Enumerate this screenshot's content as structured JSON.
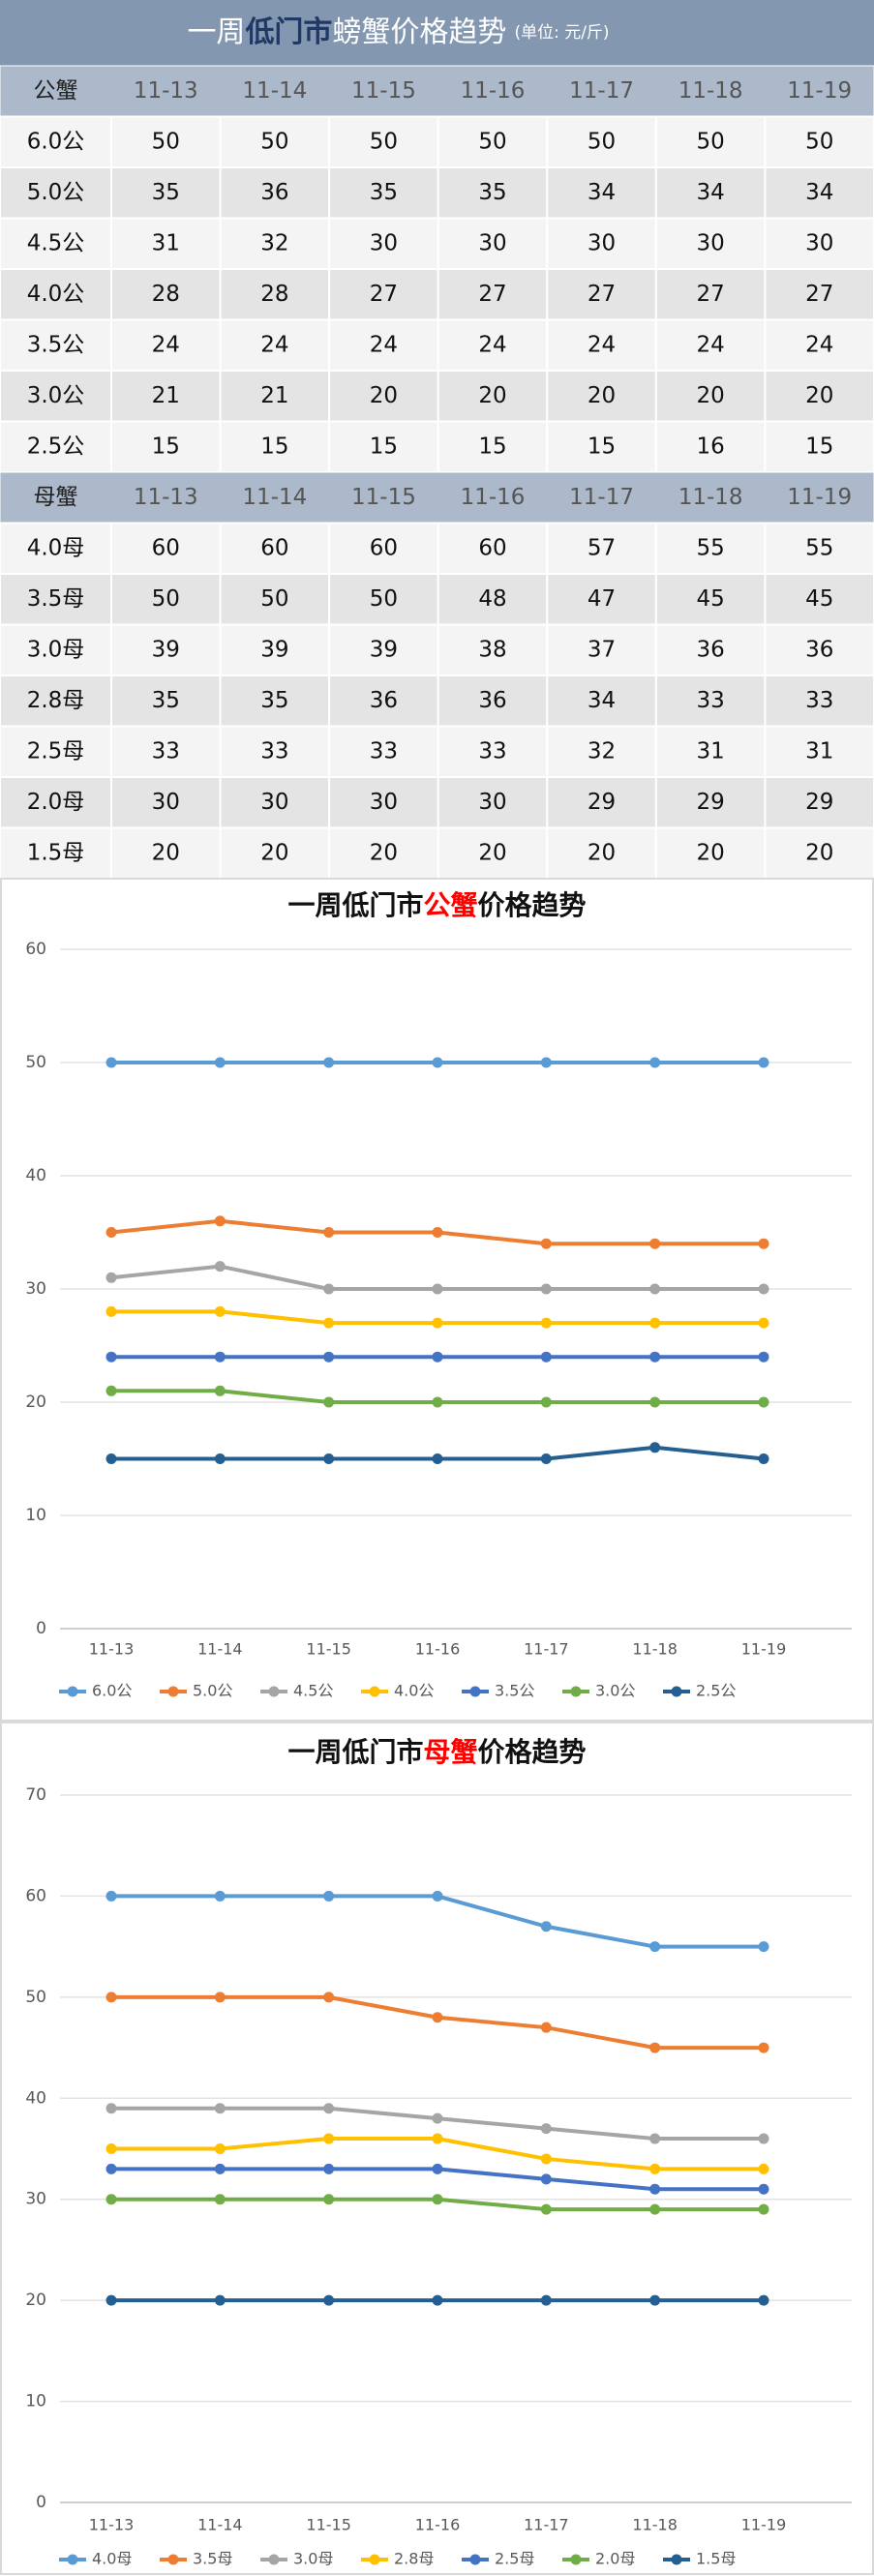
{
  "table": {
    "title_parts": [
      "一周",
      "低门市",
      "螃蟹价格趋势"
    ],
    "unit": "(单位: 元/斤)",
    "sections": [
      {
        "header": "公蟹",
        "columns": [
          "11-13",
          "11-14",
          "11-15",
          "11-16",
          "11-17",
          "11-18",
          "11-19"
        ],
        "rows": [
          {
            "label": "6.0公",
            "values": [
              50,
              50,
              50,
              50,
              50,
              50,
              50
            ]
          },
          {
            "label": "5.0公",
            "values": [
              35,
              36,
              35,
              35,
              34,
              34,
              34
            ]
          },
          {
            "label": "4.5公",
            "values": [
              31,
              32,
              30,
              30,
              30,
              30,
              30
            ]
          },
          {
            "label": "4.0公",
            "values": [
              28,
              28,
              27,
              27,
              27,
              27,
              27
            ]
          },
          {
            "label": "3.5公",
            "values": [
              24,
              24,
              24,
              24,
              24,
              24,
              24
            ]
          },
          {
            "label": "3.0公",
            "values": [
              21,
              21,
              20,
              20,
              20,
              20,
              20
            ]
          },
          {
            "label": "2.5公",
            "values": [
              15,
              15,
              15,
              15,
              15,
              16,
              15
            ]
          }
        ]
      },
      {
        "header": "母蟹",
        "columns": [
          "11-13",
          "11-14",
          "11-15",
          "11-16",
          "11-17",
          "11-18",
          "11-19"
        ],
        "rows": [
          {
            "label": "4.0母",
            "values": [
              60,
              60,
              60,
              60,
              57,
              55,
              55
            ]
          },
          {
            "label": "3.5母",
            "values": [
              50,
              50,
              50,
              48,
              47,
              45,
              45
            ]
          },
          {
            "label": "3.0母",
            "values": [
              39,
              39,
              39,
              38,
              37,
              36,
              36
            ]
          },
          {
            "label": "2.8母",
            "values": [
              35,
              35,
              36,
              36,
              34,
              33,
              33
            ]
          },
          {
            "label": "2.5母",
            "values": [
              33,
              33,
              33,
              33,
              32,
              31,
              31
            ]
          },
          {
            "label": "2.0母",
            "values": [
              30,
              30,
              30,
              30,
              29,
              29,
              29
            ]
          },
          {
            "label": "1.5母",
            "values": [
              20,
              20,
              20,
              20,
              20,
              20,
              20
            ]
          }
        ]
      }
    ]
  },
  "chart_data": [
    {
      "type": "line",
      "title_parts": [
        "一周低门市",
        "公蟹",
        "价格趋势"
      ],
      "categories": [
        "11-13",
        "11-14",
        "11-15",
        "11-16",
        "11-17",
        "11-18",
        "11-19"
      ],
      "ylim": [
        0,
        60
      ],
      "yticks": [
        0,
        10,
        20,
        30,
        40,
        50,
        60
      ],
      "grid": true,
      "legend": "bottom",
      "series": [
        {
          "name": "6.0公",
          "color": "#5b9bd5",
          "values": [
            50,
            50,
            50,
            50,
            50,
            50,
            50
          ]
        },
        {
          "name": "5.0公",
          "color": "#ed7d31",
          "values": [
            35,
            36,
            35,
            35,
            34,
            34,
            34
          ]
        },
        {
          "name": "4.5公",
          "color": "#a5a5a5",
          "values": [
            31,
            32,
            30,
            30,
            30,
            30,
            30
          ]
        },
        {
          "name": "4.0公",
          "color": "#ffc000",
          "values": [
            28,
            28,
            27,
            27,
            27,
            27,
            27
          ]
        },
        {
          "name": "3.5公",
          "color": "#4472c4",
          "values": [
            24,
            24,
            24,
            24,
            24,
            24,
            24
          ]
        },
        {
          "name": "3.0公",
          "color": "#70ad47",
          "values": [
            21,
            21,
            20,
            20,
            20,
            20,
            20
          ]
        },
        {
          "name": "2.5公",
          "color": "#255e91",
          "values": [
            15,
            15,
            15,
            15,
            15,
            16,
            15
          ]
        }
      ]
    },
    {
      "type": "line",
      "title_parts": [
        "一周低门市",
        "母蟹",
        "价格趋势"
      ],
      "categories": [
        "11-13",
        "11-14",
        "11-15",
        "11-16",
        "11-17",
        "11-18",
        "11-19"
      ],
      "ylim": [
        0,
        70
      ],
      "yticks": [
        0,
        10,
        20,
        30,
        40,
        50,
        60,
        70
      ],
      "grid": true,
      "legend": "bottom",
      "series": [
        {
          "name": "4.0母",
          "color": "#5b9bd5",
          "values": [
            60,
            60,
            60,
            60,
            57,
            55,
            55
          ]
        },
        {
          "name": "3.5母",
          "color": "#ed7d31",
          "values": [
            50,
            50,
            50,
            48,
            47,
            45,
            45
          ]
        },
        {
          "name": "3.0母",
          "color": "#a5a5a5",
          "values": [
            39,
            39,
            39,
            38,
            37,
            36,
            36
          ]
        },
        {
          "name": "2.8母",
          "color": "#ffc000",
          "values": [
            35,
            35,
            36,
            36,
            34,
            33,
            33
          ]
        },
        {
          "name": "2.5母",
          "color": "#4472c4",
          "values": [
            33,
            33,
            33,
            33,
            32,
            31,
            31
          ]
        },
        {
          "name": "2.0母",
          "color": "#70ad47",
          "values": [
            30,
            30,
            30,
            30,
            29,
            29,
            29
          ]
        },
        {
          "name": "1.5母",
          "color": "#255e91",
          "values": [
            20,
            20,
            20,
            20,
            20,
            20,
            20
          ]
        }
      ]
    }
  ]
}
